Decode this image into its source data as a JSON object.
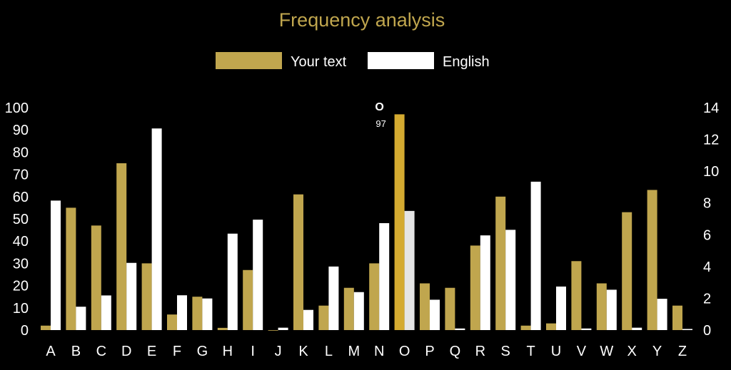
{
  "chart_data": {
    "type": "bar",
    "title": "Frequency analysis",
    "categories": [
      "A",
      "B",
      "C",
      "D",
      "E",
      "F",
      "G",
      "H",
      "I",
      "J",
      "K",
      "L",
      "M",
      "N",
      "O",
      "P",
      "Q",
      "R",
      "S",
      "T",
      "U",
      "V",
      "W",
      "X",
      "Y",
      "Z"
    ],
    "series": [
      {
        "name": "Your text",
        "axis": "left",
        "color": "#C0A64E",
        "values": [
          2,
          55,
          47,
          75,
          30,
          7,
          15,
          1,
          27,
          0,
          61,
          11,
          19,
          30,
          97,
          21,
          19,
          38,
          60,
          2,
          3,
          31,
          21,
          53,
          63,
          11
        ]
      },
      {
        "name": "English",
        "axis": "right",
        "color": "#FFFFFF",
        "values": [
          8.15,
          1.47,
          2.18,
          4.23,
          12.69,
          2.19,
          1.99,
          6.07,
          6.95,
          0.15,
          1.27,
          4.0,
          2.39,
          6.73,
          7.5,
          1.91,
          0.1,
          5.96,
          6.31,
          9.34,
          2.74,
          0.1,
          2.54,
          0.15,
          1.97,
          0.07
        ]
      }
    ],
    "left_axis": {
      "ylim": [
        0,
        100
      ],
      "ticks": [
        "0",
        "10",
        "20",
        "30",
        "40",
        "50",
        "60",
        "70",
        "80",
        "90",
        "100"
      ]
    },
    "right_axis": {
      "ylim": [
        0,
        14
      ],
      "ticks": [
        "0",
        "2",
        "4",
        "6",
        "8",
        "10",
        "12",
        "14"
      ]
    },
    "grid": false,
    "legend": "top-center",
    "highlight": {
      "category": "O",
      "label": "O",
      "value": "97",
      "gold_color": "#D4AA30",
      "white_color": "#E5E5E5"
    },
    "title_color": "#C0A64E"
  }
}
